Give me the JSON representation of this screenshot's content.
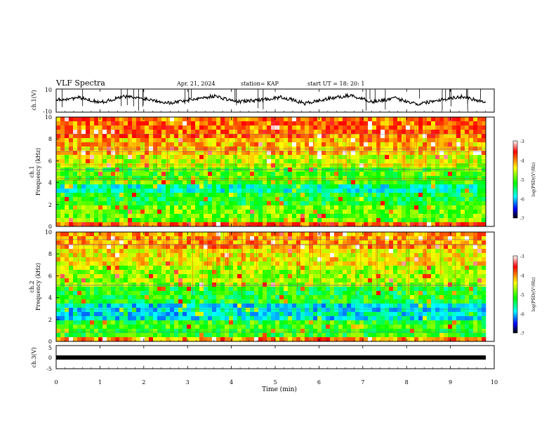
{
  "header": {
    "title": "VLF Spectra",
    "date": "Apr. 21, 2024",
    "station": "station= KAP",
    "start": "start  UT =   18: 20: 1"
  },
  "chart_data": [
    {
      "type": "line",
      "panel": "ch1-waveform",
      "ylabel": "ch.1(V)",
      "ylim": [
        -10,
        10
      ],
      "yticks": [
        "10",
        "-10"
      ],
      "xlim": [
        0,
        10
      ],
      "description_values": "approx. waveform envelope, mostly between -5 and 5 V",
      "series": [
        {
          "values": [
            0.5,
            2.5,
            -1.5,
            3.5,
            1.5,
            -2,
            1,
            4,
            -1,
            0.5,
            3,
            -2.5,
            1.5,
            4.5,
            -1,
            2,
            -3,
            1,
            3.5,
            -1.5
          ]
        }
      ]
    },
    {
      "type": "heatmap",
      "panel": "ch1-spectrogram",
      "ylabel": "Frequency (kHz)",
      "channel_label": "ch.1",
      "xlim": [
        0,
        10
      ],
      "ylim": [
        0,
        10
      ],
      "yticks": [
        "0",
        "2",
        "4",
        "6",
        "8",
        "10"
      ],
      "colorbar": {
        "label": "log(PSD)(V²/Hz)",
        "ticks": [
          "-3",
          "-4",
          "-5",
          "-6",
          "-7"
        ],
        "range": [
          -7,
          -3
        ]
      },
      "bands": [
        {
          "from": 0,
          "to": 0.5,
          "level": -3.8
        },
        {
          "from": 0.5,
          "to": 2,
          "level": -4.9
        },
        {
          "from": 2,
          "to": 3,
          "level": -5.2
        },
        {
          "from": 3,
          "to": 4,
          "level": -5.6
        },
        {
          "from": 4,
          "to": 5.2,
          "level": -5.0
        },
        {
          "from": 5.2,
          "to": 6.6,
          "level": -4.6
        },
        {
          "from": 6.6,
          "to": 8,
          "level": -4.2
        },
        {
          "from": 8,
          "to": 10,
          "level": -3.9
        }
      ]
    },
    {
      "type": "heatmap",
      "panel": "ch2-spectrogram",
      "ylabel": "Frequency (kHz)",
      "channel_label": "ch.2",
      "xlim": [
        0,
        10
      ],
      "ylim": [
        0,
        10
      ],
      "yticks": [
        "0",
        "2",
        "4",
        "6",
        "8",
        "10"
      ],
      "colorbar": {
        "label": "log(PSD)(V²/Hz)",
        "ticks": [
          "-3",
          "-4",
          "-5",
          "-6",
          "-7"
        ],
        "range": [
          -7,
          -3
        ]
      },
      "bands": [
        {
          "from": 0,
          "to": 0.5,
          "level": -4.0
        },
        {
          "from": 0.5,
          "to": 2,
          "level": -5.1
        },
        {
          "from": 2,
          "to": 3.5,
          "level": -5.8
        },
        {
          "from": 3.5,
          "to": 5,
          "level": -5.2
        },
        {
          "from": 5,
          "to": 7,
          "level": -4.7
        },
        {
          "from": 7,
          "to": 8.5,
          "level": -4.4
        },
        {
          "from": 8.5,
          "to": 10,
          "level": -4.1
        }
      ]
    },
    {
      "type": "line",
      "panel": "ch3-waveform",
      "ylabel": "ch.3(V)",
      "ylim": [
        -5,
        5
      ],
      "yticks": [
        "5",
        "0",
        "-5"
      ],
      "xlim": [
        0,
        10
      ],
      "xlabel": "Time (min)",
      "xticks": [
        "0",
        "1",
        "2",
        "3",
        "4",
        "5",
        "6",
        "7",
        "8",
        "9",
        "10"
      ],
      "series": [
        {
          "values": [
            0,
            0,
            0,
            0,
            0,
            0,
            0,
            0,
            0,
            0
          ]
        }
      ]
    }
  ],
  "colors": {
    "axis": "#000000",
    "trace": "#000000",
    "background": "#ffffff"
  }
}
